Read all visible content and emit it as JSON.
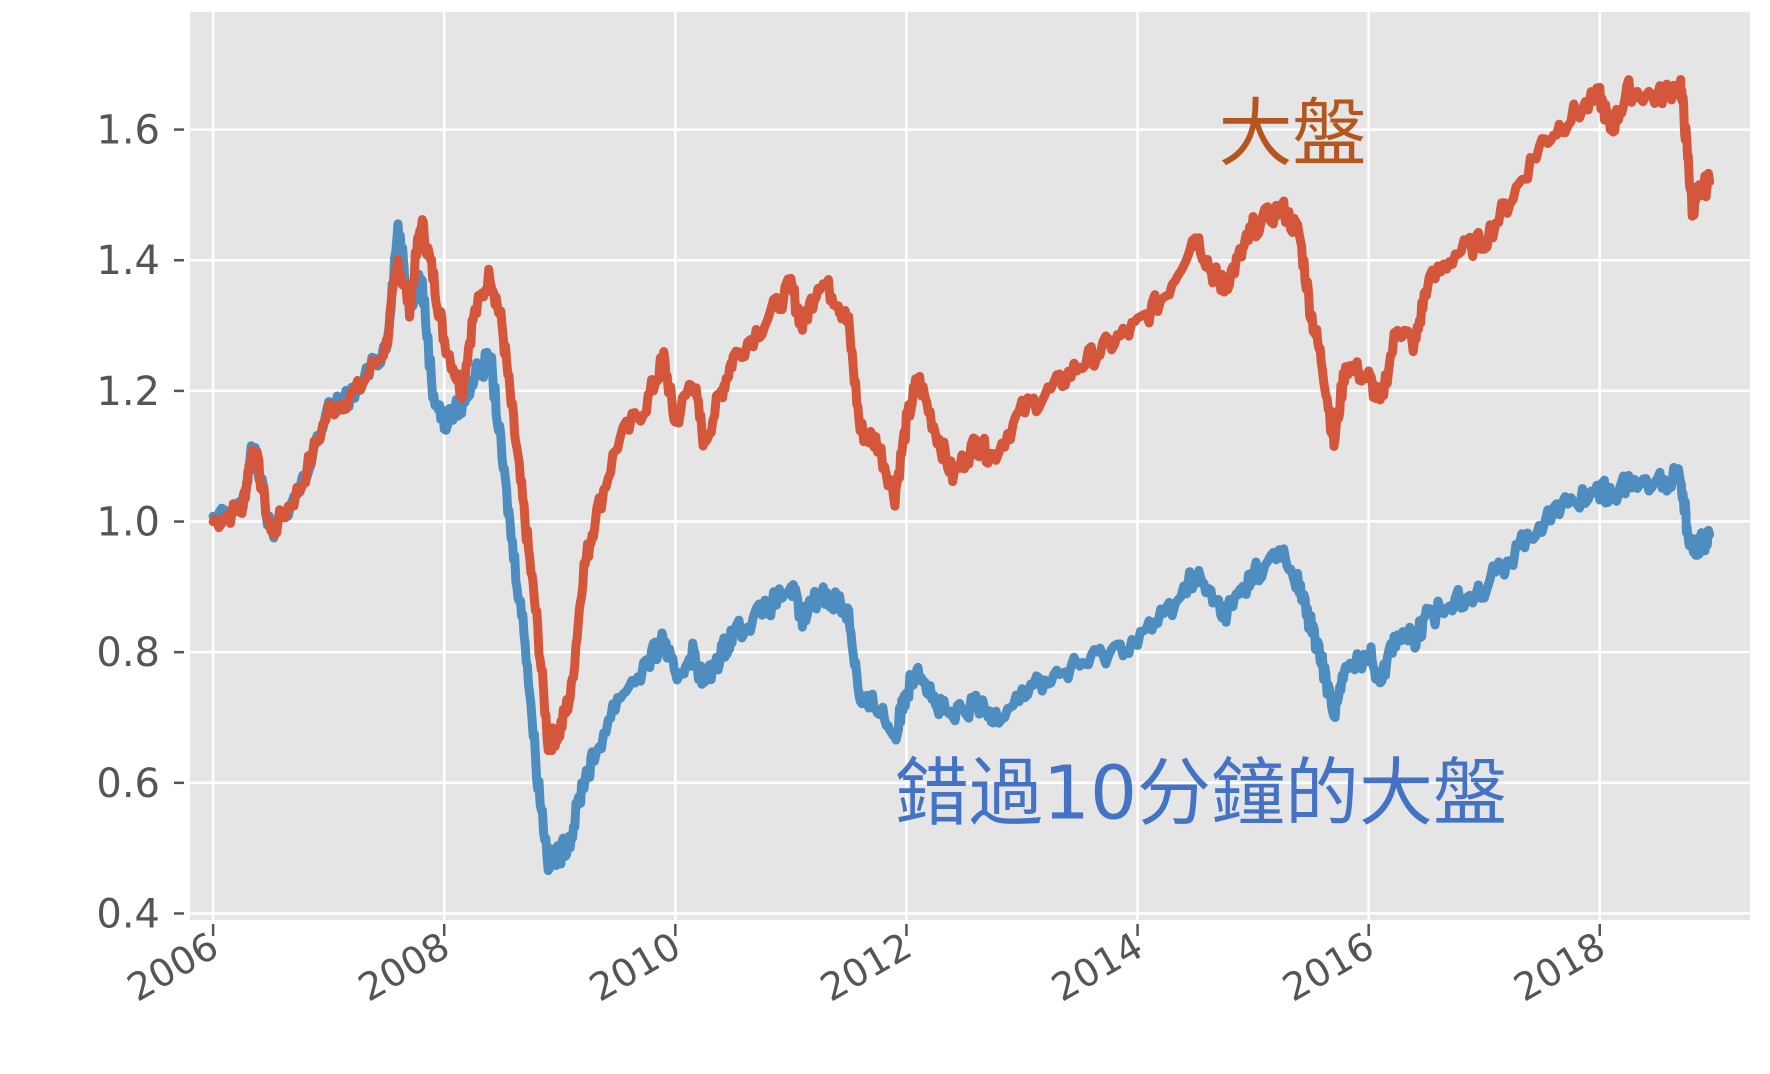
{
  "chart_data": {
    "type": "line",
    "title": "",
    "xlabel": "",
    "ylabel": "",
    "xlim": [
      2005.8,
      2019.3
    ],
    "ylim": [
      0.39,
      1.78
    ],
    "grid": true,
    "x_ticks": [
      2006,
      2008,
      2010,
      2012,
      2014,
      2016,
      2018
    ],
    "x_tick_labels": [
      "2006",
      "2008",
      "2010",
      "2012",
      "2014",
      "2016",
      "2018"
    ],
    "y_ticks": [
      0.4,
      0.6,
      0.8,
      1.0,
      1.2,
      1.4,
      1.6
    ],
    "y_tick_labels": [
      "0.4",
      "0.6",
      "0.8",
      "1.0",
      "1.2",
      "1.4",
      "1.6"
    ],
    "colors": {
      "background": "#e5e5e5",
      "grid": "#ffffff"
    },
    "series": [
      {
        "name": "大盤",
        "color": "#d4573b",
        "x": [
          2006.0,
          2006.25,
          2006.35,
          2006.5,
          2006.75,
          2007.0,
          2007.25,
          2007.5,
          2007.6,
          2007.7,
          2007.8,
          2007.9,
          2008.0,
          2008.15,
          2008.25,
          2008.4,
          2008.5,
          2008.6,
          2008.7,
          2008.8,
          2008.9,
          2009.0,
          2009.1,
          2009.2,
          2009.3,
          2009.5,
          2009.75,
          2009.9,
          2010.0,
          2010.15,
          2010.25,
          2010.4,
          2010.5,
          2010.75,
          2011.0,
          2011.1,
          2011.25,
          2011.4,
          2011.5,
          2011.6,
          2011.75,
          2011.9,
          2012.0,
          2012.1,
          2012.25,
          2012.4,
          2012.6,
          2012.75,
          2013.0,
          2013.25,
          2013.5,
          2013.75,
          2014.0,
          2014.25,
          2014.5,
          2014.65,
          2014.75,
          2014.9,
          2015.0,
          2015.25,
          2015.4,
          2015.5,
          2015.6,
          2015.7,
          2015.8,
          2016.0,
          2016.1,
          2016.25,
          2016.4,
          2016.5,
          2016.75,
          2017.0,
          2017.25,
          2017.5,
          2017.75,
          2018.0,
          2018.1,
          2018.25,
          2018.5,
          2018.7,
          2018.75,
          2018.8,
          2018.85,
          2018.95
        ],
        "values": [
          1.0,
          1.02,
          1.12,
          0.98,
          1.05,
          1.17,
          1.2,
          1.27,
          1.4,
          1.33,
          1.46,
          1.38,
          1.28,
          1.2,
          1.31,
          1.38,
          1.3,
          1.15,
          1.0,
          0.85,
          0.66,
          0.68,
          0.74,
          0.92,
          1.0,
          1.12,
          1.18,
          1.25,
          1.15,
          1.22,
          1.12,
          1.2,
          1.25,
          1.3,
          1.36,
          1.3,
          1.37,
          1.34,
          1.3,
          1.14,
          1.12,
          1.04,
          1.15,
          1.22,
          1.14,
          1.07,
          1.12,
          1.1,
          1.17,
          1.2,
          1.24,
          1.27,
          1.3,
          1.35,
          1.44,
          1.38,
          1.36,
          1.41,
          1.45,
          1.48,
          1.44,
          1.32,
          1.24,
          1.12,
          1.24,
          1.22,
          1.18,
          1.3,
          1.27,
          1.36,
          1.41,
          1.43,
          1.5,
          1.58,
          1.62,
          1.65,
          1.6,
          1.66,
          1.65,
          1.67,
          1.58,
          1.48,
          1.5,
          1.52
        ]
      },
      {
        "name": "錯過10分鐘的大盤",
        "color": "#4d8dbf",
        "x": [
          2006.0,
          2006.25,
          2006.35,
          2006.5,
          2006.75,
          2007.0,
          2007.25,
          2007.5,
          2007.6,
          2007.7,
          2007.8,
          2007.9,
          2008.0,
          2008.15,
          2008.25,
          2008.4,
          2008.5,
          2008.6,
          2008.7,
          2008.8,
          2008.9,
          2009.0,
          2009.1,
          2009.2,
          2009.3,
          2009.5,
          2009.75,
          2009.9,
          2010.0,
          2010.15,
          2010.25,
          2010.4,
          2010.5,
          2010.75,
          2011.0,
          2011.1,
          2011.25,
          2011.4,
          2011.5,
          2011.6,
          2011.75,
          2011.9,
          2012.0,
          2012.1,
          2012.25,
          2012.4,
          2012.6,
          2012.75,
          2013.0,
          2013.25,
          2013.5,
          2013.75,
          2014.0,
          2014.25,
          2014.5,
          2014.65,
          2014.75,
          2014.9,
          2015.0,
          2015.25,
          2015.4,
          2015.5,
          2015.6,
          2015.7,
          2015.8,
          2016.0,
          2016.1,
          2016.25,
          2016.4,
          2016.5,
          2016.75,
          2017.0,
          2017.25,
          2017.5,
          2017.75,
          2018.0,
          2018.1,
          2018.25,
          2018.5,
          2018.7,
          2018.75,
          2018.8,
          2018.85,
          2018.95
        ],
        "values": [
          1.0,
          1.02,
          1.12,
          0.98,
          1.05,
          1.17,
          1.2,
          1.27,
          1.45,
          1.33,
          1.38,
          1.2,
          1.15,
          1.18,
          1.22,
          1.25,
          1.1,
          0.95,
          0.82,
          0.62,
          0.48,
          0.49,
          0.52,
          0.6,
          0.64,
          0.73,
          0.78,
          0.82,
          0.76,
          0.8,
          0.75,
          0.8,
          0.83,
          0.86,
          0.9,
          0.85,
          0.89,
          0.88,
          0.86,
          0.72,
          0.72,
          0.67,
          0.74,
          0.78,
          0.72,
          0.7,
          0.72,
          0.7,
          0.74,
          0.76,
          0.78,
          0.8,
          0.82,
          0.86,
          0.92,
          0.88,
          0.86,
          0.89,
          0.92,
          0.95,
          0.9,
          0.84,
          0.78,
          0.71,
          0.77,
          0.8,
          0.76,
          0.83,
          0.82,
          0.85,
          0.88,
          0.9,
          0.95,
          1.0,
          1.03,
          1.05,
          1.04,
          1.06,
          1.06,
          1.07,
          1.0,
          0.96,
          0.96,
          0.98
        ]
      }
    ],
    "annotations": [
      {
        "text": "大盤",
        "series": 0,
        "color": "#b5561e"
      },
      {
        "text": "錯過10分鐘的大盤",
        "series": 1,
        "color": "#4472c4"
      }
    ]
  }
}
